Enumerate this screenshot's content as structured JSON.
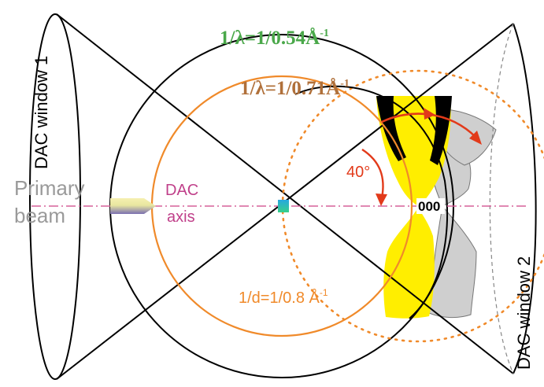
{
  "labels": {
    "window1": "DAC window 1",
    "window2": "DAC window 2",
    "lambda1": "1/λ=1/0.54Å",
    "lambda1_exp": "-1",
    "lambda2": "1/λ=1/0.71Å",
    "lambda2_exp": "-1",
    "primary_line1": "Primary",
    "primary_line2": "beam",
    "dac_line1": "DAC",
    "dac_line2": "axis",
    "angle": "40°",
    "origin": "000",
    "dspacing": "1/d=1/0.8 Å",
    "dspacing_exp": "-1"
  },
  "colors": {
    "green_label": "#4aa84a",
    "brown_label": "#b0703a",
    "orange": "#f08a2a",
    "magenta": "#c0408a",
    "gray_text": "#9a9a9a",
    "red_arrow": "#e23a1a",
    "yellow": "#ffee00",
    "gray_fill": "#cfcfcf",
    "black": "#000000",
    "axis_dash": "#d6609a"
  }
}
